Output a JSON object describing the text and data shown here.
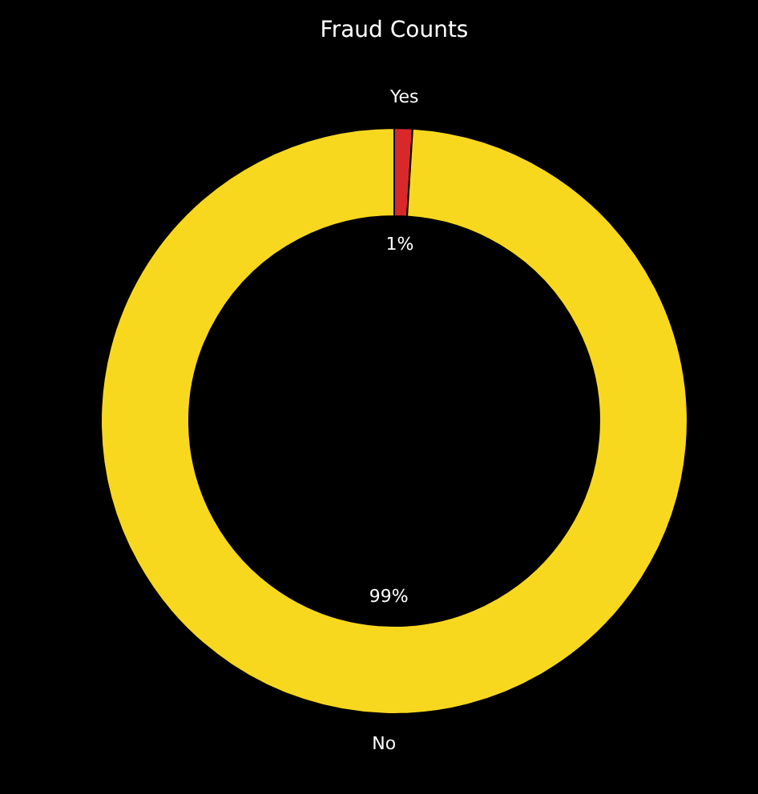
{
  "chart_data": {
    "type": "donut",
    "title": "Fraud Counts",
    "categories": [
      "Yes",
      "No"
    ],
    "values": [
      1,
      99
    ],
    "colors": [
      "#d9282a",
      "#f8d81e"
    ],
    "value_labels": [
      "1%",
      "99%"
    ]
  }
}
